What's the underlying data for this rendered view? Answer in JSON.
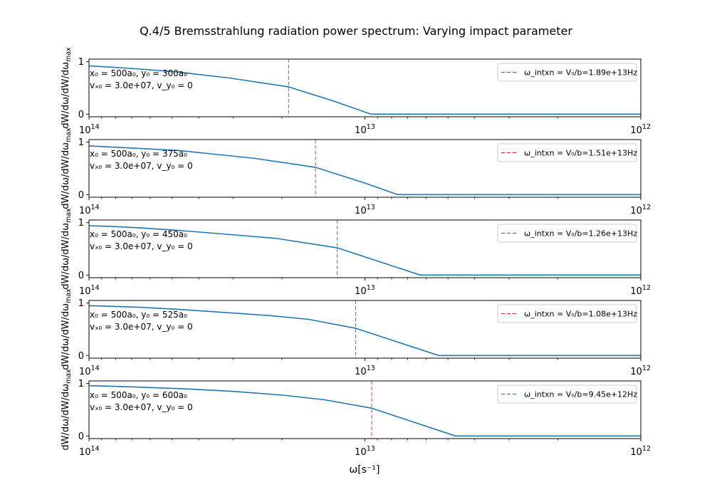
{
  "chart_data": {
    "type": "line",
    "title": "Q.4/5 Bremsstrahlung radiation power spectrum: Varying impact parameter",
    "xlabel": "ω[s⁻¹]",
    "ylabel": "dW/dω/dW/dω",
    "ylabel_sub": "max",
    "x_scale": "log",
    "x_reversed": true,
    "xlim": [
      100000000000000.0,
      1000000000000.0
    ],
    "ylim": [
      -0.05,
      1.05
    ],
    "x_ticks": [
      {
        "value": 100000000000000.0,
        "base": "10",
        "exp": "14"
      },
      {
        "value": 10000000000000.0,
        "base": "10",
        "exp": "13"
      },
      {
        "value": 1000000000000.0,
        "base": "10",
        "exp": "12"
      }
    ],
    "y_ticks": [
      {
        "value": 0,
        "label": "0"
      },
      {
        "value": 1,
        "label": "1"
      }
    ],
    "grid": false,
    "legend_position": "top-right",
    "line_color": "#1f77b4",
    "vline_color": "#d62728",
    "panels": [
      {
        "annotation": {
          "line1": "x₀ = 500a₀, y₀ = 300a₀",
          "line2": "vₓ₀ = 3.0e+07, v_y₀ = 0"
        },
        "legend_label": "ω_intxn = V₀/b=1.89e+13Hz",
        "vline_x": 18900000000000.0,
        "x": [
          100000000000000.0,
          85000000000000.0,
          65000000000000.0,
          47000000000000.0,
          31000000000000.0,
          18900000000000.0,
          13000000000000.0,
          9500000000000.0,
          1000000000000.0
        ],
        "y": [
          0.92,
          0.9,
          0.86,
          0.8,
          0.69,
          0.52,
          0.25,
          0.0,
          0.0
        ]
      },
      {
        "annotation": {
          "line1": "x₀ = 500a₀, y₀ = 375a₀",
          "line2": "vₓ₀ = 3.0e+07, v_y₀ = 0"
        },
        "legend_label": "ω_intxn = V₀/b=1.51e+13Hz",
        "vline_x": 15100000000000.0,
        "x": [
          100000000000000.0,
          85000000000000.0,
          65000000000000.0,
          47000000000000.0,
          35000000000000.0,
          25000000000000.0,
          15100000000000.0,
          10000000000000.0,
          7600000000000.0,
          1000000000000.0
        ],
        "y": [
          0.93,
          0.91,
          0.88,
          0.84,
          0.77,
          0.69,
          0.52,
          0.22,
          0.0,
          0.0
        ]
      },
      {
        "annotation": {
          "line1": "x₀ = 500a₀, y₀ = 450a₀",
          "line2": "vₓ₀ = 3.0e+07, v_y₀ = 0"
        },
        "legend_label": "ω_intxn = V₀/b=1.26e+13Hz",
        "vline_x": 12600000000000.0,
        "x": [
          100000000000000.0,
          85000000000000.0,
          65000000000000.0,
          47000000000000.0,
          32000000000000.0,
          21000000000000.0,
          12600000000000.0,
          6300000000000.0,
          1000000000000.0
        ],
        "y": [
          0.94,
          0.93,
          0.9,
          0.85,
          0.78,
          0.7,
          0.52,
          0.0,
          0.0
        ]
      },
      {
        "annotation": {
          "line1": "x₀ = 500a₀, y₀ = 525a₀",
          "line2": "vₓ₀ = 3.0e+07, v_y₀ = 0"
        },
        "legend_label": "ω_intxn = V₀/b=1.08e+13Hz",
        "vline_x": 10800000000000.0,
        "x": [
          100000000000000.0,
          85000000000000.0,
          65000000000000.0,
          47000000000000.0,
          32000000000000.0,
          22000000000000.0,
          16000000000000.0,
          10800000000000.0,
          5400000000000.0,
          1000000000000.0
        ],
        "y": [
          0.95,
          0.94,
          0.92,
          0.88,
          0.82,
          0.76,
          0.69,
          0.52,
          0.0,
          0.0
        ]
      },
      {
        "annotation": {
          "line1": "x₀ = 500a₀, y₀ = 600a₀",
          "line2": "vₓ₀ = 3.0e+07, v_y₀ = 0"
        },
        "legend_label": "ω_intxn = V₀/b=9.45e+12Hz",
        "vline_x": 9450000000000.0,
        "x": [
          100000000000000.0,
          85000000000000.0,
          65000000000000.0,
          45000000000000.0,
          30000000000000.0,
          20000000000000.0,
          14000000000000.0,
          9450000000000.0,
          4700000000000.0,
          1000000000000.0
        ],
        "y": [
          0.96,
          0.95,
          0.93,
          0.9,
          0.85,
          0.78,
          0.69,
          0.53,
          0.0,
          0.0
        ]
      }
    ]
  }
}
